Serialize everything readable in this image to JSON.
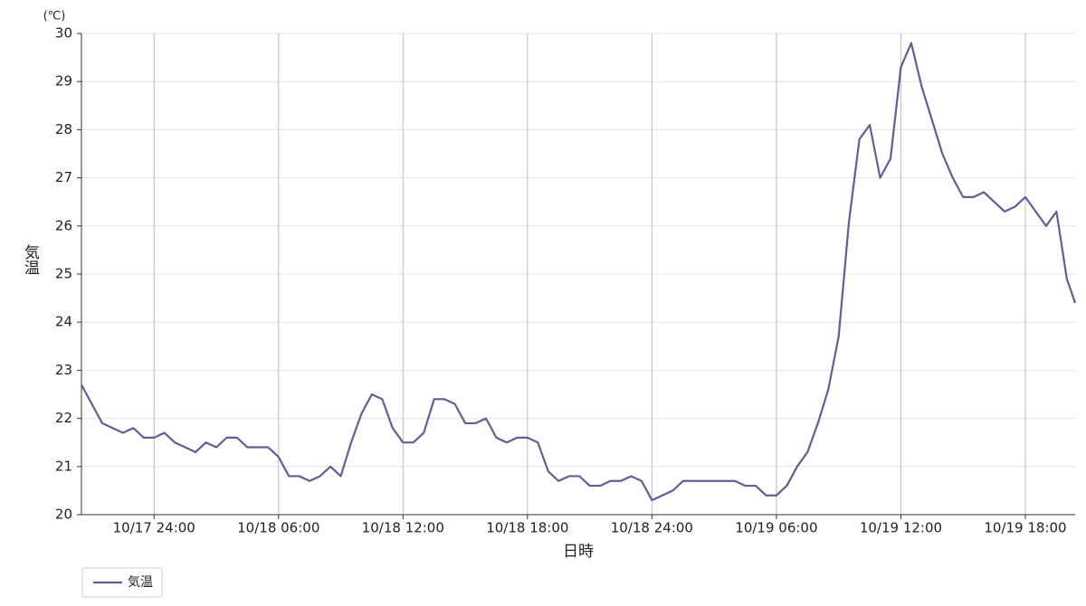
{
  "chart_data": {
    "type": "line",
    "x_label": "日時",
    "y_label": "気温",
    "y_unit": "(℃)",
    "x": [
      20.5,
      21,
      21.5,
      22,
      22.5,
      23,
      23.5,
      24,
      24.5,
      25,
      25.5,
      26,
      26.5,
      27,
      27.5,
      28,
      28.5,
      29,
      29.5,
      30,
      30.5,
      31,
      31.5,
      32,
      32.5,
      33,
      33.5,
      34,
      34.5,
      35,
      35.5,
      36,
      36.5,
      37,
      37.5,
      38,
      38.5,
      39,
      39.5,
      40,
      40.5,
      41,
      41.5,
      42,
      42.5,
      43,
      43.5,
      44,
      44.5,
      45,
      45.5,
      46,
      46.5,
      47,
      47.5,
      48,
      48.5,
      49,
      49.5,
      50,
      50.5,
      51,
      51.5,
      52,
      52.5,
      53,
      53.5,
      54,
      54.5,
      55,
      55.5,
      56,
      56.5,
      57,
      57.5,
      58,
      58.5,
      59,
      59.5,
      60,
      60.5,
      61,
      61.5,
      62,
      62.5,
      63,
      63.5,
      64,
      64.5,
      65,
      65.5,
      66,
      66.5,
      67,
      67.5,
      68,
      68.4
    ],
    "series": [
      {
        "name": "気温",
        "color": "#5f5f96",
        "values": [
          22.7,
          22.3,
          21.9,
          21.8,
          21.7,
          21.8,
          21.6,
          21.6,
          21.7,
          21.5,
          21.4,
          21.3,
          21.5,
          21.4,
          21.6,
          21.6,
          21.4,
          21.4,
          21.4,
          21.2,
          20.8,
          20.8,
          20.7,
          20.8,
          21.0,
          20.8,
          21.5,
          22.1,
          22.5,
          22.4,
          21.8,
          21.5,
          21.5,
          21.7,
          22.4,
          22.4,
          22.3,
          21.9,
          21.9,
          22.0,
          21.6,
          21.5,
          21.6,
          21.6,
          21.5,
          20.9,
          20.7,
          20.8,
          20.8,
          20.6,
          20.6,
          20.7,
          20.7,
          20.8,
          20.7,
          20.3,
          20.4,
          20.5,
          20.7,
          20.7,
          20.7,
          20.7,
          20.7,
          20.7,
          20.6,
          20.6,
          20.4,
          20.4,
          20.6,
          21.0,
          21.3,
          21.9,
          22.6,
          23.7,
          26.1,
          27.8,
          28.1,
          27.0,
          27.4,
          29.3,
          29.8,
          28.9,
          28.2,
          27.5,
          27.0,
          26.6,
          26.6,
          26.7,
          26.5,
          26.3,
          26.4,
          26.6,
          26.3,
          26.0,
          26.3,
          24.9,
          24.4
        ]
      }
    ],
    "xlim": [
      20.5,
      68.4
    ],
    "xticks": [
      {
        "value": 24,
        "label": "10/17 24:00"
      },
      {
        "value": 30,
        "label": "10/18 06:00"
      },
      {
        "value": 36,
        "label": "10/18 12:00"
      },
      {
        "value": 42,
        "label": "10/18 18:00"
      },
      {
        "value": 48,
        "label": "10/18 24:00"
      },
      {
        "value": 54,
        "label": "10/19 06:00"
      },
      {
        "value": 60,
        "label": "10/19 12:00"
      },
      {
        "value": 66,
        "label": "10/19 18:00"
      }
    ],
    "ylim": [
      20,
      30
    ],
    "yticks": [
      20,
      21,
      22,
      23,
      24,
      25,
      26,
      27,
      28,
      29,
      30
    ],
    "grid": true,
    "legend": "bottom-left"
  }
}
